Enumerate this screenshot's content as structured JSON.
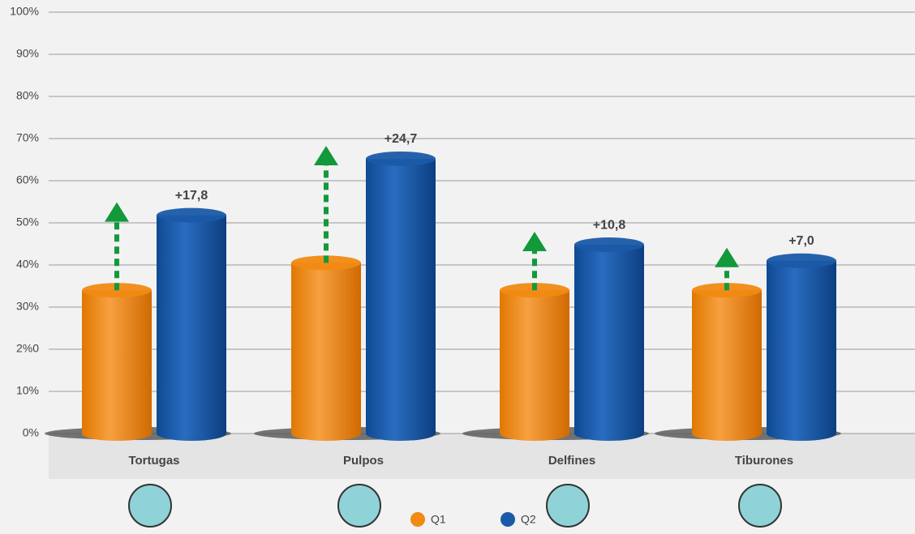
{
  "chart_data": {
    "type": "bar",
    "categories": [
      "Tortugas",
      "Pulpos",
      "Delfines",
      "Tiburones"
    ],
    "series": [
      {
        "name": "Q1",
        "color": "#f08a12",
        "values": [
          34,
          40.5,
          34,
          34
        ]
      },
      {
        "name": "Q2",
        "color": "#1a5aa8",
        "values": [
          51.8,
          65.2,
          44.8,
          41
        ]
      }
    ],
    "annotations": [
      "+17,8",
      "+24,7",
      "+10,8",
      "+7,0"
    ],
    "ylim": [
      0,
      100
    ],
    "yticks": [
      {
        "value": 0,
        "label": "0%"
      },
      {
        "value": 10,
        "label": "10%"
      },
      {
        "value": 20,
        "label": "2%0"
      },
      {
        "value": 30,
        "label": "30%"
      },
      {
        "value": 40,
        "label": "40%"
      },
      {
        "value": 50,
        "label": "50%"
      },
      {
        "value": 60,
        "label": "60%"
      },
      {
        "value": 70,
        "label": "70%"
      },
      {
        "value": 80,
        "label": "80%"
      },
      {
        "value": 90,
        "label": "90%"
      },
      {
        "value": 100,
        "label": "100%"
      }
    ],
    "grid": true,
    "legend": "bottom",
    "arrow_color": "#12993a"
  }
}
